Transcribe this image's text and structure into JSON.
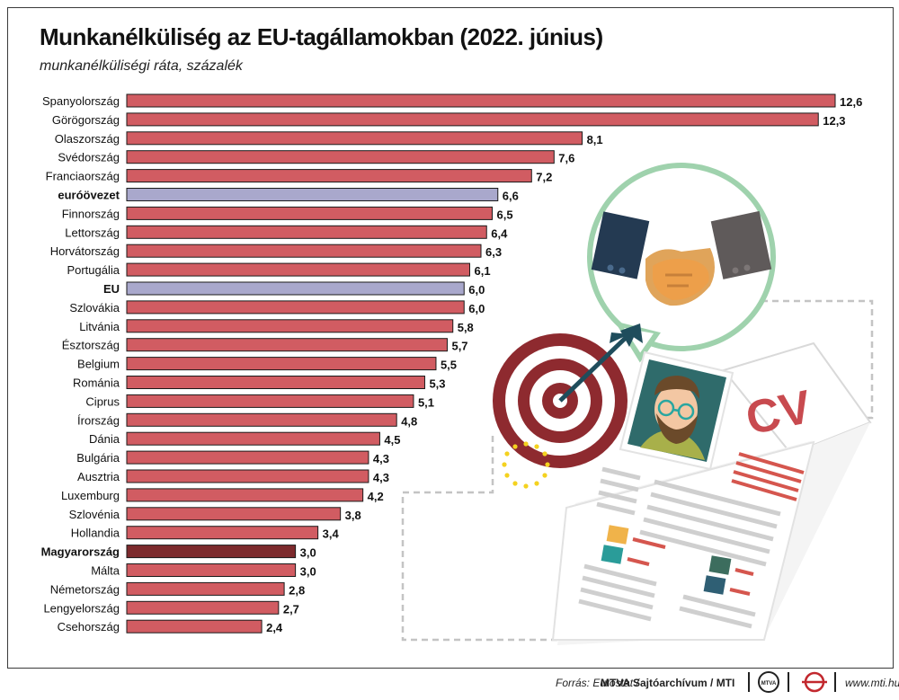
{
  "title": "Munkanélküliség az EU-tagállamokban (2022. június)",
  "subtitle": "munkanélküliségi ráta, százalék",
  "colors": {
    "default": "#d15c62",
    "aggregate": "#a9a8cc",
    "highlight": "#7d2a2d",
    "border": "#1a1a1a"
  },
  "chart_data": {
    "type": "bar",
    "orientation": "horizontal",
    "categories": [
      "Spanyolország",
      "Görögország",
      "Olaszország",
      "Svédország",
      "Franciaország",
      "euróövezet",
      "Finnország",
      "Lettország",
      "Horvátország",
      "Portugália",
      "EU",
      "Szlovákia",
      "Litvánia",
      "Észtország",
      "Belgium",
      "Románia",
      "Ciprus",
      "Írország",
      "Dánia",
      "Bulgária",
      "Ausztria",
      "Luxemburg",
      "Szlovénia",
      "Hollandia",
      "Magyarország",
      "Málta",
      "Németország",
      "Lengyelország",
      "Csehország"
    ],
    "values": [
      12.6,
      12.3,
      8.1,
      7.6,
      7.2,
      6.6,
      6.5,
      6.4,
      6.3,
      6.1,
      6.0,
      6.0,
      5.8,
      5.7,
      5.5,
      5.3,
      5.1,
      4.8,
      4.5,
      4.3,
      4.3,
      4.2,
      3.8,
      3.4,
      3.0,
      3.0,
      2.8,
      2.7,
      2.4
    ],
    "value_labels": [
      "12,6",
      "12,3",
      "8,1",
      "7,6",
      "7,2",
      "6,6",
      "6,5",
      "6,4",
      "6,3",
      "6,1",
      "6,0",
      "6,0",
      "5,8",
      "5,7",
      "5,5",
      "5,3",
      "5,1",
      "4,8",
      "4,5",
      "4,3",
      "4,3",
      "4,2",
      "3,8",
      "3,4",
      "3,0",
      "3,0",
      "2,8",
      "2,7",
      "2,4"
    ],
    "aggregate_categories": [
      "euróövezet",
      "EU"
    ],
    "highlight_category": "Magyarország",
    "xlim": [
      0,
      12.6
    ],
    "grid": false,
    "legend": "none"
  },
  "illustration": {
    "cv_text": "CV",
    "icons": [
      "handshake-icon",
      "target-icon",
      "dart-icon",
      "avatar-icon",
      "eu-stars-icon",
      "cv-document-icon"
    ]
  },
  "footer": {
    "source_label": "Forrás: Eurostat /",
    "source_value": "MTVA Sajtóarchívum / MTI",
    "website": "www.mti.hu",
    "logos": [
      "mtva-logo",
      "mti-logo"
    ]
  }
}
